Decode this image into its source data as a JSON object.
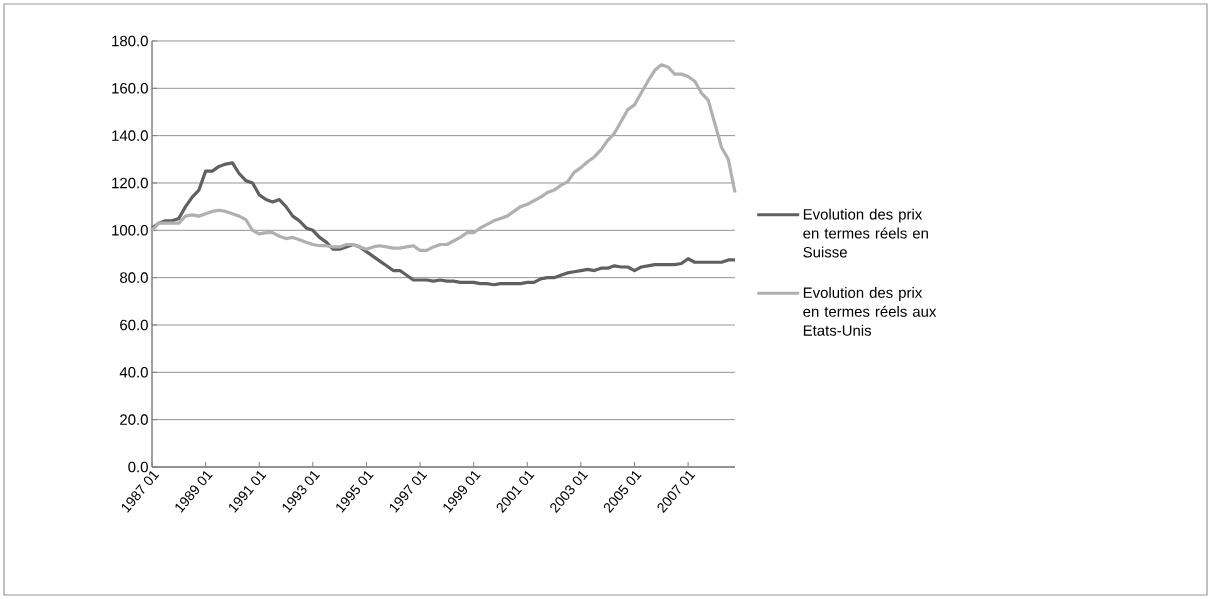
{
  "chart_data": {
    "type": "line",
    "categories": [
      "1987 01",
      null,
      null,
      null,
      null,
      null,
      null,
      null,
      "1989 01",
      null,
      null,
      null,
      null,
      null,
      null,
      null,
      "1991 01",
      null,
      null,
      null,
      null,
      null,
      null,
      null,
      "1993 01",
      null,
      null,
      null,
      null,
      null,
      null,
      null,
      "1995 01",
      null,
      null,
      null,
      null,
      null,
      null,
      null,
      "1997 01",
      null,
      null,
      null,
      null,
      null,
      null,
      null,
      "1999 01",
      null,
      null,
      null,
      null,
      null,
      null,
      null,
      "2001 01",
      null,
      null,
      null,
      null,
      null,
      null,
      null,
      "2003 01",
      null,
      null,
      null,
      null,
      null,
      null,
      null,
      "2005 01",
      null,
      null,
      null,
      null,
      null,
      null,
      null,
      "2007 01",
      null,
      null,
      null,
      null,
      null,
      null,
      null
    ],
    "series": [
      {
        "name": "Evolution des prix en termes réels en Suisse",
        "color": "#606060",
        "values": [
          101,
          103,
          104,
          104,
          105,
          110,
          114,
          117,
          125,
          125,
          127,
          128,
          128.5,
          124,
          121,
          120,
          115,
          113,
          112,
          113,
          110,
          106,
          104,
          101,
          100,
          97,
          95,
          92,
          92,
          93,
          94,
          93,
          91,
          89,
          87,
          85,
          83,
          83,
          81,
          79,
          79,
          79,
          78.5,
          79,
          78.5,
          78.5,
          78,
          78,
          78,
          77.5,
          77.5,
          77,
          77.5,
          77.5,
          77.5,
          77.5,
          78,
          78,
          79.5,
          80,
          80,
          81,
          82,
          82.5,
          83,
          83.5,
          83,
          84,
          84,
          85,
          84.5,
          84.5,
          83,
          84.5,
          85,
          85.5,
          85.5,
          85.5,
          85.5,
          86,
          88,
          86.5,
          86.5,
          86.5,
          86.5,
          86.5,
          87.5,
          87.5
        ]
      },
      {
        "name": "Evolution des prix en termes réels aux Etats-Unis",
        "color": "#b0b0b0",
        "values": [
          100,
          103,
          103,
          103,
          103,
          106,
          106.5,
          106,
          107,
          108,
          108.5,
          108,
          107,
          106,
          104.5,
          100,
          98.5,
          99,
          99,
          97.5,
          96.5,
          97,
          96,
          95,
          94,
          93.5,
          93.5,
          93,
          93,
          94,
          94,
          93,
          92,
          93,
          93.5,
          93,
          92.5,
          92.5,
          93,
          93.5,
          91.5,
          91.5,
          93,
          94,
          94,
          95.5,
          97,
          99,
          99,
          101,
          102.5,
          104,
          105,
          106,
          108,
          110,
          111,
          112.5,
          114,
          116,
          117,
          119,
          120.5,
          124.5,
          126.5,
          129,
          131,
          134,
          138,
          141,
          146,
          151,
          153,
          158,
          163,
          167.5,
          170,
          169,
          166,
          166,
          165,
          163,
          158,
          155,
          145,
          135,
          130,
          116
        ]
      }
    ],
    "ylim": [
      0,
      180
    ],
    "yticks": [
      {
        "value": 0,
        "label": "0.0"
      },
      {
        "value": 20,
        "label": "20.0"
      },
      {
        "value": 40,
        "label": "40.0"
      },
      {
        "value": 60,
        "label": "60.0"
      },
      {
        "value": 80,
        "label": "80.0"
      },
      {
        "value": 100,
        "label": "100.0"
      },
      {
        "value": 120,
        "label": "120.0"
      },
      {
        "value": 140,
        "label": "140.0"
      },
      {
        "value": 160,
        "label": "160.0"
      },
      {
        "value": 180,
        "label": "180.0"
      }
    ],
    "grid": "y",
    "legend": "right",
    "marker": "none",
    "line_style": "solid"
  }
}
